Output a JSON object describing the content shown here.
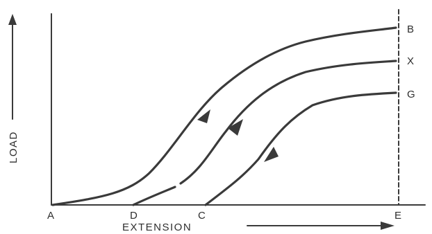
{
  "axes": {
    "y_label": "LOAD",
    "x_label": "EXTENSION"
  },
  "points": {
    "origin": "A",
    "d": "D",
    "c": "C",
    "e": "E"
  },
  "curves": [
    {
      "label": "B",
      "direction": "up"
    },
    {
      "label": "X",
      "direction": "up"
    },
    {
      "label": "G",
      "direction": "down"
    }
  ],
  "colors": {
    "ink": "#3a3a3a"
  }
}
